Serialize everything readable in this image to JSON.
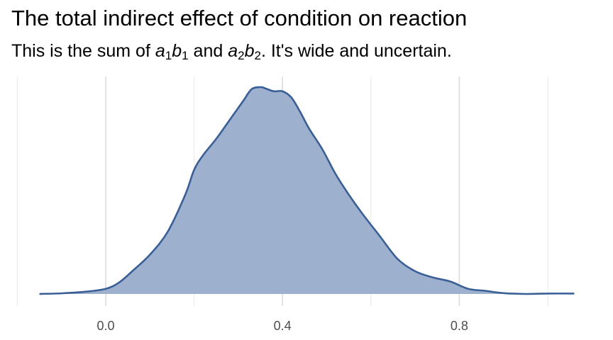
{
  "chart_data": {
    "type": "area",
    "title": "The total indirect effect of condition on reaction",
    "subtitle": {
      "prefix": "This is the sum of ",
      "term1": {
        "var": "a",
        "sub": "1",
        "var2": "b",
        "sub2": "1"
      },
      "connector": " and ",
      "term2": {
        "var": "a",
        "sub": "2",
        "var2": "b",
        "sub2": "2"
      },
      "suffix": ". It's wide and uncertain."
    },
    "xlabel": "",
    "ylabel": "",
    "xlim": [
      -0.2,
      1.06
    ],
    "ylim": [
      0,
      1.0
    ],
    "x_ticks": [
      0.0,
      0.4,
      0.8
    ],
    "x_tick_labels": [
      "0.0",
      "0.4",
      "0.8"
    ],
    "x_minor_grid": [
      -0.2,
      0.2,
      0.6,
      1.0
    ],
    "grid": true,
    "fill_color": "#9db1ce",
    "line_color": "#3a5f97",
    "x": [
      -0.15,
      -0.1,
      -0.05,
      0.0,
      0.03,
      0.06,
      0.1,
      0.14,
      0.18,
      0.2,
      0.22,
      0.25,
      0.28,
      0.31,
      0.33,
      0.35,
      0.36,
      0.38,
      0.4,
      0.42,
      0.44,
      0.46,
      0.49,
      0.52,
      0.55,
      0.58,
      0.62,
      0.66,
      0.7,
      0.74,
      0.78,
      0.82,
      0.86,
      0.9,
      0.95,
      1.0,
      1.06
    ],
    "density": [
      0.0,
      0.003,
      0.01,
      0.025,
      0.055,
      0.11,
      0.19,
      0.3,
      0.48,
      0.6,
      0.67,
      0.75,
      0.84,
      0.93,
      0.99,
      1.0,
      0.995,
      0.98,
      0.98,
      0.95,
      0.88,
      0.8,
      0.7,
      0.58,
      0.48,
      0.39,
      0.28,
      0.17,
      0.11,
      0.08,
      0.06,
      0.025,
      0.015,
      0.004,
      0.0,
      0.002,
      0.002
    ]
  }
}
